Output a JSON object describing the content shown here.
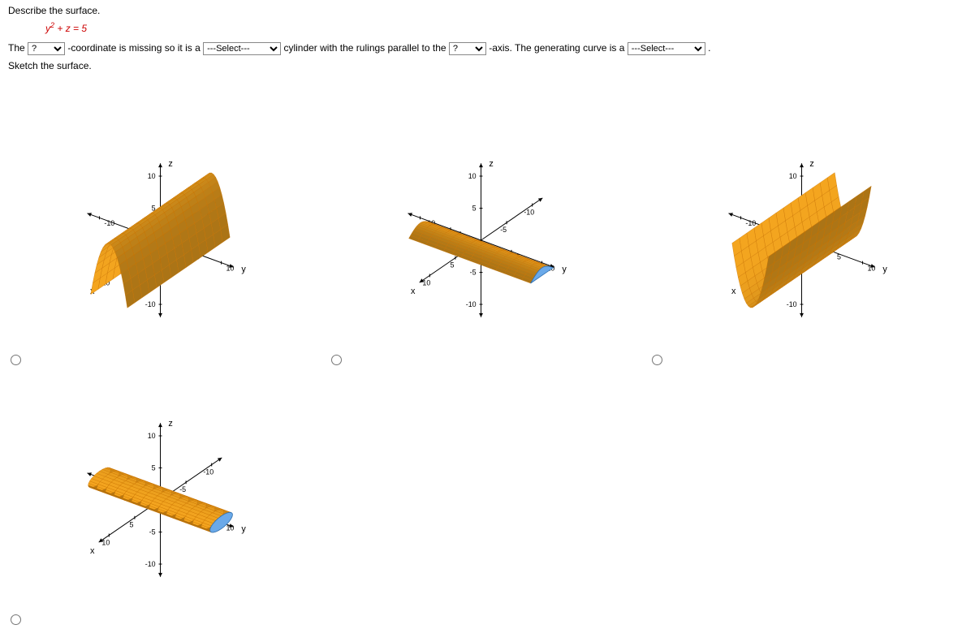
{
  "prompt": {
    "title": "Describe the surface.",
    "equation_var": "y",
    "equation_rest": " + z = 5",
    "sentence_part1": "The ",
    "sentence_part2": "-coordinate is missing so it is a ",
    "sentence_part3": " cylinder with the rulings parallel to the ",
    "sentence_part4": "-axis. The generating curve is a ",
    "sentence_part5": ".",
    "sketch_label": "Sketch the surface.",
    "select_placeholder_q": "?",
    "select_placeholder_long": "---Select---"
  },
  "plot_style": {
    "surface_fill": "#f4a51f",
    "surface_mesh": "#c97200",
    "surface_shadow": "#b96a00",
    "cap_fill": "#6aa9e9",
    "cap_stroke": "#2e6fb0",
    "axis_color": "#000000",
    "tick_color": "#000000",
    "axis_label_fontsize": 10,
    "tick_fontsize": 9
  },
  "axes": {
    "x_label": "x",
    "y_label": "y",
    "z_label": "z",
    "ticks": [
      -10,
      -5,
      5,
      10
    ]
  },
  "options": {
    "plot_count": 4,
    "layout": "2x3 grid (4 used)"
  }
}
